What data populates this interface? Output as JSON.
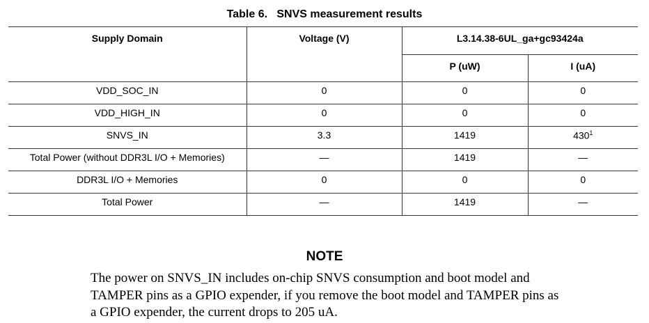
{
  "title": "Table 6.   SNVS measurement results",
  "table": {
    "headers": {
      "supply_domain": "Supply Domain",
      "voltage": "Voltage (V)",
      "version": "L3.14.38-6UL_ga+gc93424a",
      "power": "P (uW)",
      "current": "I (uA)"
    },
    "rows": [
      {
        "domain": "VDD_SOC_IN",
        "voltage": "0",
        "power": "0",
        "current": "0",
        "footnote": ""
      },
      {
        "domain": "VDD_HIGH_IN",
        "voltage": "0",
        "power": "0",
        "current": "0",
        "footnote": ""
      },
      {
        "domain": "SNVS_IN",
        "voltage": "3.3",
        "power": "1419",
        "current": "430",
        "footnote": "1"
      },
      {
        "domain": "Total Power (without DDR3L I/O + Memories)",
        "voltage": "—",
        "power": "1419",
        "current": "—",
        "footnote": ""
      },
      {
        "domain": "DDR3L I/O + Memories",
        "voltage": "0",
        "power": "0",
        "current": "0",
        "footnote": ""
      },
      {
        "domain": "Total Power",
        "voltage": "—",
        "power": "1419",
        "current": "—",
        "footnote": ""
      }
    ]
  },
  "note": {
    "heading": "NOTE",
    "text": "The power on SNVS_IN includes on-chip SNVS consumption and boot model and TAMPER pins as a GPIO expender, if you remove the boot model and TAMPER pins as a GPIO expender, the current drops to 205 uA."
  }
}
